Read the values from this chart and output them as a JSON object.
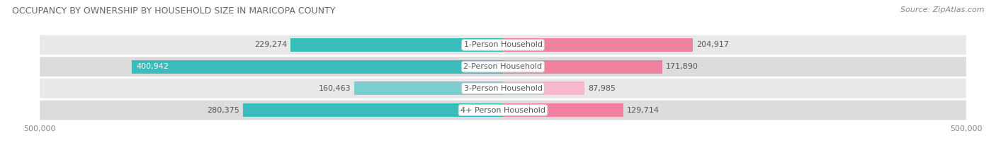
{
  "title": "OCCUPANCY BY OWNERSHIP BY HOUSEHOLD SIZE IN MARICOPA COUNTY",
  "source": "Source: ZipAtlas.com",
  "categories": [
    "1-Person Household",
    "2-Person Household",
    "3-Person Household",
    "4+ Person Household"
  ],
  "owner_values": [
    229274,
    400942,
    160463,
    280375
  ],
  "renter_values": [
    204917,
    171890,
    87985,
    129714
  ],
  "owner_color": "#3BBCBC",
  "renter_color": "#F080A0",
  "owner_color_light": "#80D8D8",
  "renter_color_light": "#F8B8CC",
  "row_bg_color_dark": "#E2E2E2",
  "row_bg_color_light": "#EAEAEA",
  "row_stripe_colors": [
    "#E8E8E8",
    "#DEDEDE",
    "#E8E8E8",
    "#DEDEDE"
  ],
  "axis_max": 500000,
  "title_fontsize": 9,
  "source_fontsize": 8,
  "tick_fontsize": 8,
  "bar_label_fontsize": 8,
  "category_fontsize": 8,
  "legend_fontsize": 8,
  "figsize": [
    14.06,
    2.33
  ],
  "dpi": 100
}
